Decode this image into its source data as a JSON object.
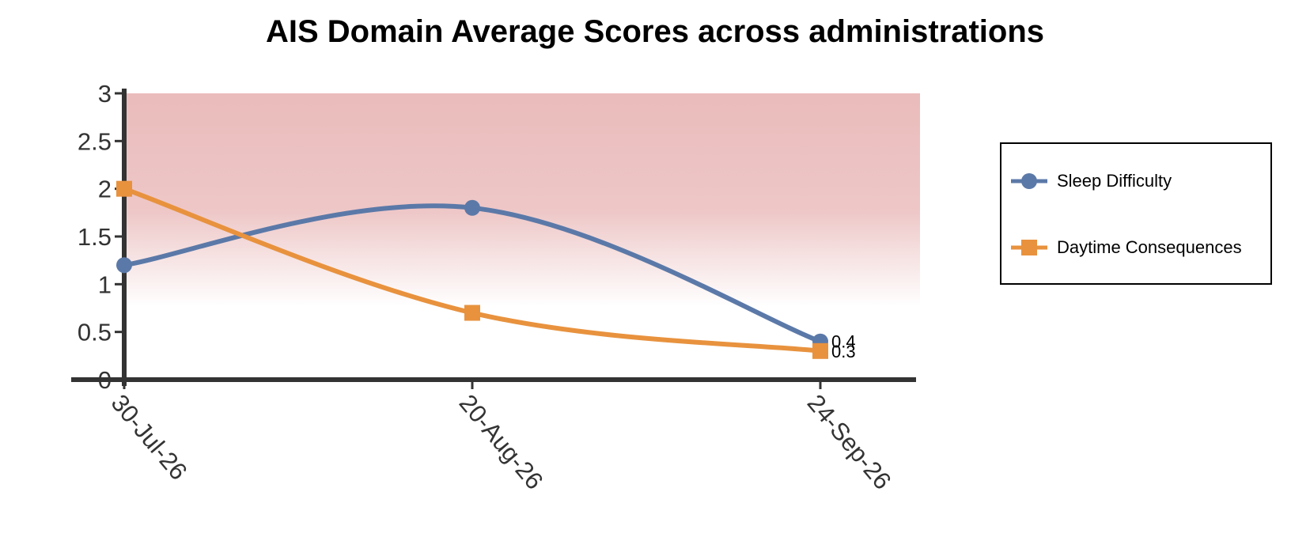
{
  "chart_data": {
    "type": "line",
    "title": "AIS Domain Average Scores across administrations",
    "xlabel": "",
    "ylabel": "",
    "x": [
      "30-Jul-26",
      "20-Aug-26",
      "24-Sep-26"
    ],
    "ylim": [
      0,
      3
    ],
    "yticks": [
      "0",
      "0.5",
      "1",
      "1.5",
      "2",
      "2.5",
      "3"
    ],
    "highlight_band": {
      "from": 1,
      "to": 3,
      "color": "#e8b4b4"
    },
    "legend_position": "right",
    "series": [
      {
        "name": "Sleep Difficulty",
        "values": [
          1.2,
          1.8,
          0.4
        ],
        "color": "#5b79a8",
        "marker": "circle",
        "end_label": "0.4"
      },
      {
        "name": "Daytime Consequences",
        "values": [
          2.0,
          0.7,
          0.3
        ],
        "color": "#e8923e",
        "marker": "square",
        "end_label": "0.3"
      }
    ]
  }
}
